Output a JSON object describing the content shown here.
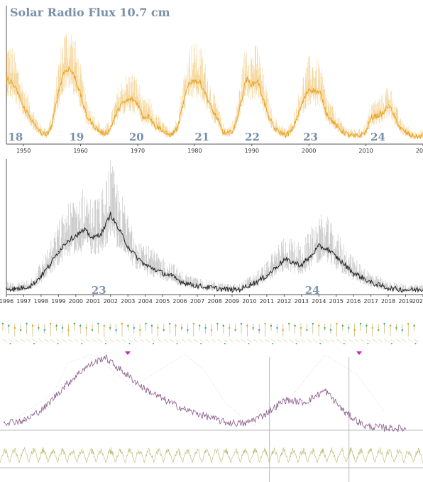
{
  "colors": {
    "panel1_series": "#e8a21c",
    "panel1_text": "#7a8fa8",
    "panel2_series": "#222222",
    "panel2_text": "#8096b0",
    "panel3_series": "#8a5a8a",
    "panel3_bottom": "#b5b86a",
    "marker_green": "#4caf50",
    "marker_cyan": "#20a8c8",
    "marker_magenta": "#d020c0",
    "axis": "#555555"
  },
  "chart_data": [
    {
      "type": "line",
      "title": "Solar Radio Flux 10.7 cm",
      "xlim": [
        1947,
        2020
      ],
      "ylim": [
        50,
        350
      ],
      "x_ticks": [
        "1950",
        "1960",
        "1970",
        "1980",
        "1990",
        "2000",
        "2010",
        "20"
      ],
      "cycle_labels": [
        {
          "label": "18",
          "year": 1947.3
        },
        {
          "label": "19",
          "year": 1958.0
        },
        {
          "label": "20",
          "year": 1968.5
        },
        {
          "label": "21",
          "year": 1980.0
        },
        {
          "label": "22",
          "year": 1988.8
        },
        {
          "label": "23",
          "year": 1999.0
        },
        {
          "label": "24",
          "year": 2010.8
        }
      ],
      "series": [
        {
          "x": [
            1947,
            1948,
            1949,
            1950,
            1951,
            1952,
            1953,
            1954,
            1955,
            1956,
            1957,
            1958,
            1959,
            1960,
            1961,
            1962,
            1963,
            1964,
            1965,
            1966,
            1967,
            1968,
            1969,
            1970,
            1971,
            1972,
            1973,
            1974,
            1975,
            1976,
            1977,
            1978,
            1979,
            1980,
            1981,
            1982,
            1983,
            1984,
            1985,
            1986,
            1987,
            1988,
            1989,
            1990,
            1991,
            1992,
            1993,
            1994,
            1995,
            1996,
            1997,
            1998,
            1999,
            2000,
            2001,
            2002,
            2003,
            2004,
            2005,
            2006,
            2007,
            2008,
            2009,
            2010,
            2011,
            2012,
            2013,
            2014,
            2015,
            2016,
            2017,
            2018,
            2019,
            2020
          ],
          "y": [
            210,
            200,
            175,
            140,
            120,
            95,
            78,
            72,
            95,
            170,
            225,
            235,
            215,
            170,
            120,
            100,
            85,
            75,
            82,
            115,
            145,
            155,
            160,
            150,
            115,
            120,
            95,
            88,
            75,
            73,
            90,
            150,
            200,
            205,
            200,
            170,
            135,
            110,
            78,
            75,
            90,
            145,
            210,
            195,
            205,
            160,
            115,
            88,
            78,
            72,
            82,
            118,
            155,
            185,
            180,
            175,
            128,
            108,
            92,
            80,
            72,
            69,
            71,
            80,
            115,
            120,
            125,
            145,
            118,
            88,
            78,
            70,
            68,
            70
          ]
        }
      ]
    },
    {
      "type": "line",
      "xlim": [
        1996,
        2020
      ],
      "ylim": [
        60,
        310
      ],
      "x_ticks": [
        "1996",
        "1997",
        "1998",
        "1999",
        "2000",
        "2001",
        "2002",
        "2003",
        "2004",
        "2005",
        "2006",
        "2007",
        "2008",
        "2009",
        "2010",
        "2011",
        "2012",
        "2013",
        "2014",
        "2015",
        "2016",
        "2017",
        "2018",
        "2019",
        "202"
      ],
      "cycle_labels": [
        {
          "label": "23",
          "year": 2000.9
        },
        {
          "label": "24",
          "year": 2013.2
        }
      ],
      "series": [
        {
          "x": [
            1996,
            1996.5,
            1997,
            1997.5,
            1998,
            1998.5,
            1999,
            1999.5,
            2000,
            2000.5,
            2001,
            2001.5,
            2002,
            2002.5,
            2003,
            2003.5,
            2004,
            2004.5,
            2005,
            2005.5,
            2006,
            2006.5,
            2007,
            2007.5,
            2008,
            2008.5,
            2009,
            2009.5,
            2010,
            2010.5,
            2011,
            2011.5,
            2012,
            2012.5,
            2013,
            2013.5,
            2014,
            2014.5,
            2015,
            2015.5,
            2016,
            2016.5,
            2017,
            2017.5,
            2018,
            2018.5,
            2019,
            2019.5,
            2020
          ],
          "y": [
            72,
            70,
            73,
            78,
            95,
            115,
            140,
            160,
            170,
            180,
            165,
            175,
            210,
            180,
            150,
            130,
            115,
            108,
            100,
            95,
            85,
            80,
            76,
            74,
            72,
            70,
            69,
            70,
            78,
            85,
            95,
            110,
            125,
            120,
            115,
            130,
            150,
            145,
            130,
            115,
            100,
            92,
            82,
            77,
            72,
            70,
            69,
            69,
            70
          ]
        }
      ]
    }
  ],
  "panel3": {
    "main_series": {
      "x": [
        0,
        0.05,
        0.1,
        0.15,
        0.2,
        0.25,
        0.3,
        0.35,
        0.4,
        0.45,
        0.5,
        0.55,
        0.6,
        0.65,
        0.7,
        0.75,
        0.8,
        0.85,
        0.9,
        0.95,
        1.0
      ],
      "y": [
        0.1,
        0.12,
        0.28,
        0.55,
        0.78,
        0.92,
        0.72,
        0.52,
        0.38,
        0.26,
        0.18,
        0.1,
        0.08,
        0.2,
        0.38,
        0.35,
        0.5,
        0.22,
        0.05,
        0.03,
        0.02
      ]
    },
    "bottom_oscillation": {
      "cycles": 44
    },
    "marker_rows": 2,
    "vertical_lines": [
      0.637,
      0.825
    ]
  }
}
